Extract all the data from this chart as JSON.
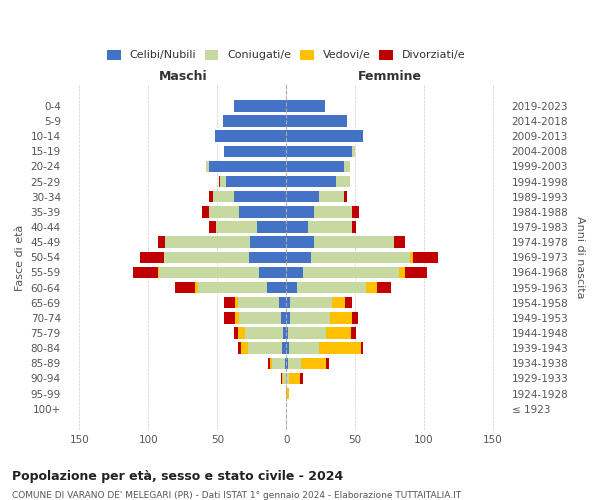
{
  "age_groups": [
    "100+",
    "95-99",
    "90-94",
    "85-89",
    "80-84",
    "75-79",
    "70-74",
    "65-69",
    "60-64",
    "55-59",
    "50-54",
    "45-49",
    "40-44",
    "35-39",
    "30-34",
    "25-29",
    "20-24",
    "15-19",
    "10-14",
    "5-9",
    "0-4"
  ],
  "birth_years": [
    "≤ 1923",
    "1924-1928",
    "1929-1933",
    "1934-1938",
    "1939-1943",
    "1944-1948",
    "1949-1953",
    "1954-1958",
    "1959-1963",
    "1964-1968",
    "1969-1973",
    "1974-1978",
    "1979-1983",
    "1984-1988",
    "1989-1993",
    "1994-1998",
    "1999-2003",
    "2004-2008",
    "2009-2013",
    "2014-2018",
    "2019-2023"
  ],
  "male": {
    "celibi": [
      0,
      0,
      0,
      1,
      3,
      2,
      4,
      5,
      14,
      20,
      27,
      26,
      21,
      34,
      38,
      44,
      56,
      45,
      52,
      46,
      38
    ],
    "coniugati": [
      0,
      0,
      2,
      9,
      25,
      28,
      30,
      30,
      50,
      72,
      62,
      62,
      30,
      22,
      15,
      4,
      2,
      0,
      0,
      0,
      0
    ],
    "vedovi": [
      0,
      0,
      1,
      2,
      5,
      5,
      3,
      2,
      2,
      1,
      0,
      0,
      0,
      0,
      0,
      0,
      0,
      0,
      0,
      0,
      0
    ],
    "divorziati": [
      0,
      0,
      1,
      1,
      2,
      3,
      8,
      8,
      15,
      18,
      17,
      5,
      5,
      5,
      3,
      1,
      0,
      0,
      0,
      0,
      0
    ]
  },
  "female": {
    "nubili": [
      0,
      0,
      0,
      1,
      2,
      1,
      3,
      3,
      8,
      12,
      18,
      20,
      16,
      20,
      24,
      36,
      42,
      48,
      56,
      44,
      28
    ],
    "coniugate": [
      0,
      0,
      2,
      10,
      22,
      28,
      29,
      30,
      50,
      70,
      72,
      58,
      32,
      28,
      18,
      10,
      4,
      2,
      0,
      0,
      0
    ],
    "vedove": [
      0,
      2,
      8,
      18,
      30,
      18,
      16,
      10,
      8,
      4,
      2,
      0,
      0,
      0,
      0,
      0,
      0,
      0,
      0,
      0,
      0
    ],
    "divorziate": [
      0,
      0,
      2,
      2,
      2,
      4,
      4,
      5,
      10,
      16,
      18,
      8,
      3,
      5,
      2,
      0,
      0,
      0,
      0,
      0,
      0
    ]
  },
  "colors": {
    "celibi": "#4472C4",
    "coniugati": "#c5d9a0",
    "vedovi": "#ffc000",
    "divorziati": "#c00000"
  },
  "title": "Popolazione per età, sesso e stato civile - 2024",
  "subtitle": "COMUNE DI VARANO DE' MELEGARI (PR) - Dati ISTAT 1° gennaio 2024 - Elaborazione TUTTAITALIA.IT",
  "ylabel_left": "Fasce di età",
  "ylabel_right": "Anni di nascita",
  "xlabel_left": "Maschi",
  "xlabel_right": "Femmine",
  "xlim": 160,
  "background_color": "#ffffff",
  "grid_color": "#cccccc",
  "legend_labels": [
    "Celibi/Nubili",
    "Coniugati/e",
    "Vedovi/e",
    "Divorziati/e"
  ]
}
